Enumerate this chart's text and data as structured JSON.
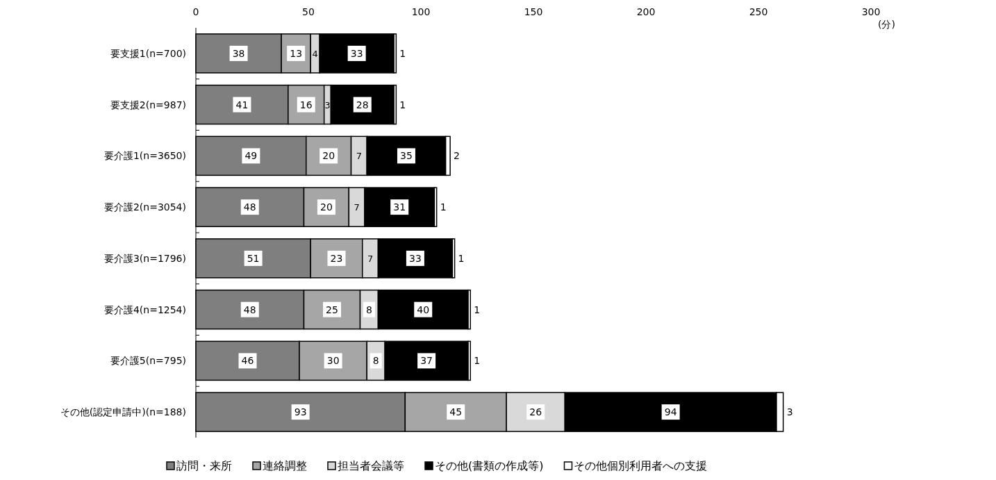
{
  "chart_data": {
    "type": "bar",
    "orientation": "horizontal",
    "stacked": true,
    "xlabel": "(分)",
    "categories": [
      "要支援1(n=700)",
      "要支援2(n=987)",
      "要介護1(n=3650)",
      "要介護2(n=3054)",
      "要介護3(n=1796)",
      "要介護4(n=1254)",
      "要介護5(n=795)",
      "その他(認定申請中)(n=188)"
    ],
    "series": [
      {
        "name": "訪問・来所",
        "color": "#7f7f7f",
        "values": [
          38,
          41,
          49,
          48,
          51,
          48,
          46,
          93
        ]
      },
      {
        "name": "連絡調整",
        "color": "#a6a6a6",
        "values": [
          13,
          16,
          20,
          20,
          23,
          25,
          30,
          45
        ]
      },
      {
        "name": "担当者会議等",
        "color": "#d9d9d9",
        "values": [
          4,
          3,
          7,
          7,
          7,
          8,
          8,
          26
        ]
      },
      {
        "name": "その他(書類の作成等)",
        "color": "#000000",
        "values": [
          33,
          28,
          35,
          31,
          33,
          40,
          37,
          94
        ]
      },
      {
        "name": "その他個別利用者への支援",
        "color": "#ffffff",
        "values": [
          1,
          1,
          2,
          1,
          1,
          1,
          1,
          3
        ]
      }
    ],
    "xlim": [
      0,
      300
    ],
    "xticks": [
      0,
      50,
      100,
      150,
      200,
      250,
      300
    ],
    "data_labels": true,
    "legend": "bottom",
    "grid": false
  }
}
